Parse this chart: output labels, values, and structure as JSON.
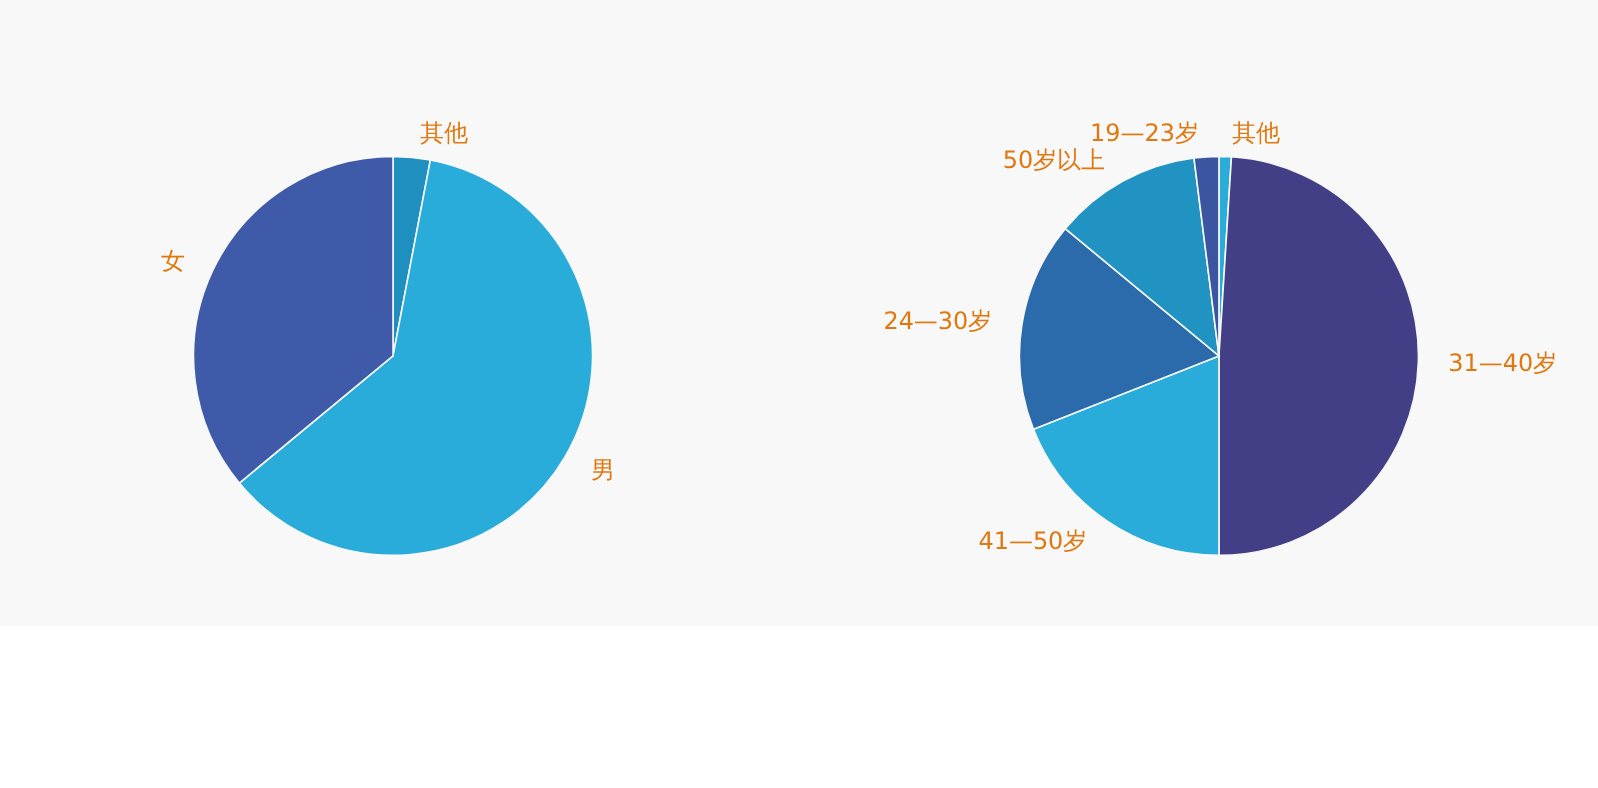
{
  "chart_data": [
    {
      "type": "pie",
      "categories": [
        "其他",
        "男",
        "女"
      ],
      "values": [
        3,
        61,
        36
      ],
      "colors": [
        "#1f8fc0",
        "#29acd9",
        "#3e5aa8"
      ]
    },
    {
      "type": "pie",
      "categories": [
        "其他",
        "31—40岁",
        "41—50岁",
        "24—30岁",
        "50岁以上",
        "19—23岁"
      ],
      "values": [
        1,
        49,
        19,
        17,
        12,
        2
      ],
      "colors": [
        "#29acd9",
        "#433f87",
        "#29acd9",
        "#2b6aab",
        "#2193c3",
        "#3b55a0"
      ]
    }
  ]
}
